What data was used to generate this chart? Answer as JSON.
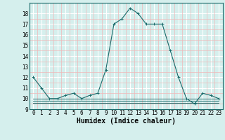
{
  "title": "",
  "xlabel": "Humidex (Indice chaleur)",
  "ylabel": "",
  "bg_color": "#d5efed",
  "line_color": "#1a6b6b",
  "grid_color_major": "#ffffff",
  "grid_color_minor": "#f0b8b8",
  "x_data": [
    0,
    1,
    2,
    3,
    4,
    5,
    6,
    7,
    8,
    9,
    10,
    11,
    12,
    13,
    14,
    15,
    16,
    17,
    18,
    19,
    20,
    21,
    22,
    23
  ],
  "y_main": [
    12,
    11,
    10,
    10,
    10.3,
    10.5,
    10,
    10.3,
    10.5,
    12.7,
    17,
    17.5,
    18.5,
    18,
    17,
    17,
    17,
    14.5,
    12,
    10,
    9.5,
    10.5,
    10.3,
    10
  ],
  "y_flat1": [
    10,
    10,
    10,
    10,
    10,
    10,
    10,
    10,
    10,
    10,
    10,
    10,
    10,
    10,
    10,
    10,
    10,
    10,
    10,
    10,
    10,
    10,
    10,
    10
  ],
  "y_flat2": [
    9.8,
    9.8,
    9.8,
    9.8,
    9.8,
    9.8,
    9.8,
    9.8,
    9.8,
    9.8,
    9.8,
    9.8,
    9.8,
    9.8,
    9.8,
    9.8,
    9.8,
    9.8,
    9.8,
    9.8,
    9.8,
    9.8,
    9.8,
    9.8
  ],
  "y_flat3": [
    9.6,
    9.6,
    9.6,
    9.6,
    9.6,
    9.6,
    9.6,
    9.6,
    9.6,
    9.6,
    9.6,
    9.6,
    9.6,
    9.6,
    9.6,
    9.6,
    9.6,
    9.6,
    9.6,
    9.6,
    9.6,
    9.6,
    9.6,
    9.6
  ],
  "xlim": [
    -0.5,
    23.5
  ],
  "ylim": [
    9,
    19
  ],
  "yticks": [
    9,
    10,
    11,
    12,
    13,
    14,
    15,
    16,
    17,
    18
  ],
  "xticks": [
    0,
    1,
    2,
    3,
    4,
    5,
    6,
    7,
    8,
    9,
    10,
    11,
    12,
    13,
    14,
    15,
    16,
    17,
    18,
    19,
    20,
    21,
    22,
    23
  ],
  "tick_fontsize": 5.5,
  "xlabel_fontsize": 7.0
}
